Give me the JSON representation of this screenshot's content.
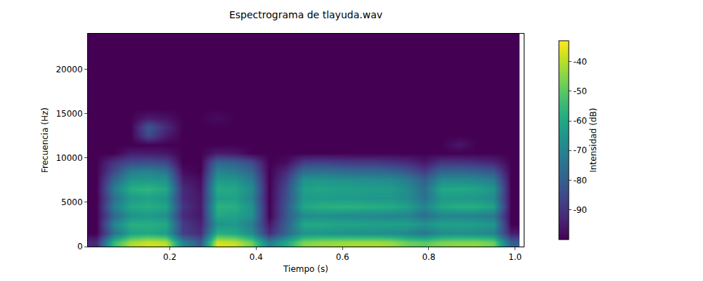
{
  "chart_data": {
    "type": "heatmap",
    "title": "Espectrograma de tlayuda.wav",
    "x_label": "Tiempo (s)",
    "y_label": "Frecuencia (Hz)",
    "colorbar_label": "Intensidad (dB)",
    "color": "Viridis",
    "grid": false,
    "x": [
      0.03,
      0.07,
      0.11,
      0.15,
      0.19,
      0.23,
      0.27,
      0.31,
      0.35,
      0.39,
      0.43,
      0.47,
      0.51,
      0.55,
      0.59,
      0.63,
      0.67,
      0.71,
      0.75,
      0.79,
      0.83,
      0.87,
      0.91,
      0.95,
      0.99
    ],
    "y": [
      500,
      1500,
      2500,
      3500,
      4500,
      5500,
      6500,
      7500,
      8500,
      9500,
      10500,
      11500,
      12500,
      13500,
      14500,
      15500,
      16500,
      17500,
      18500,
      19500,
      20500,
      21500,
      22500,
      23500
    ],
    "cells": [
      [
        -92,
        -55,
        -42,
        -38,
        -40,
        -70,
        -82,
        -37,
        -39,
        -48,
        -72,
        -60,
        -46,
        -44,
        -43,
        -42,
        -42,
        -43,
        -48,
        -50,
        -46,
        -45,
        -45,
        -48,
        -80
      ],
      [
        -100,
        -75,
        -62,
        -60,
        -63,
        -88,
        -92,
        -58,
        -60,
        -68,
        -92,
        -78,
        -66,
        -65,
        -66,
        -67,
        -67,
        -68,
        -70,
        -74,
        -68,
        -67,
        -68,
        -70,
        -95
      ],
      [
        -100,
        -70,
        -58,
        -58,
        -60,
        -88,
        -94,
        -66,
        -64,
        -72,
        -96,
        -80,
        -60,
        -60,
        -61,
        -61,
        -62,
        -62,
        -62,
        -66,
        -62,
        -62,
        -63,
        -65,
        -100
      ],
      [
        -100,
        -78,
        -66,
        -64,
        -67,
        -92,
        -96,
        -60,
        -62,
        -66,
        -100,
        -82,
        -68,
        -67,
        -68,
        -69,
        -69,
        -70,
        -70,
        -76,
        -70,
        -70,
        -71,
        -73,
        -100
      ],
      [
        -100,
        -72,
        -60,
        -58,
        -61,
        -90,
        -96,
        -57,
        -58,
        -66,
        -100,
        -82,
        -60,
        -58,
        -57,
        -57,
        -58,
        -59,
        -62,
        -70,
        -60,
        -58,
        -58,
        -62,
        -100
      ],
      [
        -100,
        -76,
        -64,
        -62,
        -65,
        -92,
        -96,
        -62,
        -62,
        -70,
        -100,
        -84,
        -64,
        -63,
        -64,
        -64,
        -65,
        -65,
        -68,
        -75,
        -64,
        -64,
        -65,
        -68,
        -100
      ],
      [
        -100,
        -72,
        -58,
        -56,
        -60,
        -92,
        -97,
        -59,
        -60,
        -68,
        -100,
        -85,
        -62,
        -61,
        -62,
        -62,
        -63,
        -63,
        -68,
        -76,
        -60,
        -60,
        -61,
        -65,
        -100
      ],
      [
        -100,
        -78,
        -65,
        -64,
        -66,
        -95,
        -98,
        -64,
        -65,
        -72,
        -100,
        -88,
        -66,
        -65,
        -66,
        -67,
        -67,
        -68,
        -72,
        -80,
        -68,
        -68,
        -69,
        -72,
        -100
      ],
      [
        -100,
        -85,
        -72,
        -70,
        -74,
        -98,
        -100,
        -70,
        -72,
        -78,
        -100,
        -92,
        -76,
        -75,
        -76,
        -77,
        -77,
        -78,
        -82,
        -88,
        -78,
        -78,
        -79,
        -82,
        -100
      ],
      [
        -100,
        -90,
        -85,
        -84,
        -86,
        -100,
        -100,
        -78,
        -80,
        -85,
        -100,
        -98,
        -88,
        -87,
        -88,
        -89,
        -89,
        -90,
        -92,
        -96,
        -90,
        -90,
        -91,
        -93,
        -100
      ],
      [
        -100,
        -100,
        -95,
        -95,
        -96,
        -100,
        -100,
        -95,
        -96,
        -100,
        -100,
        -100,
        -100,
        -100,
        -100,
        -100,
        -100,
        -100,
        -100,
        -100,
        -100,
        -100,
        -100,
        -100,
        -100
      ],
      [
        -100,
        -100,
        -100,
        -100,
        -100,
        -100,
        -100,
        -100,
        -100,
        -100,
        -100,
        -100,
        -100,
        -100,
        -100,
        -100,
        -100,
        -100,
        -100,
        -100,
        -100,
        -96,
        -100,
        -100,
        -100
      ],
      [
        -100,
        -100,
        -100,
        -85,
        -95,
        -100,
        -100,
        -100,
        -100,
        -100,
        -100,
        -100,
        -100,
        -100,
        -100,
        -100,
        -100,
        -100,
        -100,
        -100,
        -100,
        -100,
        -100,
        -100,
        -100
      ],
      [
        -100,
        -100,
        -100,
        -82,
        -92,
        -100,
        -100,
        -100,
        -100,
        -100,
        -100,
        -100,
        -100,
        -100,
        -100,
        -100,
        -100,
        -100,
        -100,
        -100,
        -100,
        -100,
        -100,
        -100,
        -100
      ],
      [
        -100,
        -100,
        -100,
        -95,
        -97,
        -100,
        -100,
        -98,
        -100,
        -100,
        -100,
        -100,
        -100,
        -100,
        -100,
        -100,
        -100,
        -100,
        -100,
        -100,
        -100,
        -100,
        -100,
        -100,
        -100
      ],
      [
        -100,
        -100,
        -100,
        -100,
        -100,
        -100,
        -100,
        -100,
        -100,
        -100,
        -100,
        -100,
        -100,
        -100,
        -100,
        -100,
        -100,
        -100,
        -100,
        -100,
        -100,
        -100,
        -100,
        -100,
        -100
      ],
      [
        -100,
        -100,
        -100,
        -100,
        -100,
        -100,
        -100,
        -100,
        -100,
        -100,
        -100,
        -100,
        -100,
        -100,
        -100,
        -100,
        -100,
        -100,
        -100,
        -100,
        -100,
        -100,
        -100,
        -100,
        -100
      ],
      [
        -100,
        -100,
        -100,
        -100,
        -100,
        -100,
        -100,
        -100,
        -100,
        -100,
        -100,
        -100,
        -100,
        -100,
        -100,
        -100,
        -100,
        -100,
        -100,
        -100,
        -100,
        -100,
        -100,
        -100,
        -100
      ],
      [
        -100,
        -100,
        -100,
        -100,
        -100,
        -100,
        -100,
        -100,
        -100,
        -100,
        -100,
        -100,
        -100,
        -100,
        -100,
        -100,
        -100,
        -100,
        -100,
        -100,
        -100,
        -100,
        -100,
        -100,
        -100
      ],
      [
        -100,
        -100,
        -100,
        -100,
        -100,
        -100,
        -100,
        -100,
        -100,
        -100,
        -100,
        -100,
        -100,
        -100,
        -100,
        -100,
        -100,
        -100,
        -100,
        -100,
        -100,
        -100,
        -100,
        -100,
        -100
      ],
      [
        -100,
        -100,
        -100,
        -100,
        -100,
        -100,
        -100,
        -100,
        -100,
        -100,
        -100,
        -100,
        -100,
        -100,
        -100,
        -100,
        -100,
        -100,
        -100,
        -100,
        -100,
        -100,
        -100,
        -100,
        -100
      ],
      [
        -100,
        -100,
        -100,
        -100,
        -100,
        -100,
        -100,
        -100,
        -100,
        -100,
        -100,
        -100,
        -100,
        -100,
        -100,
        -100,
        -100,
        -100,
        -100,
        -100,
        -100,
        -100,
        -100,
        -100,
        -100
      ],
      [
        -100,
        -100,
        -100,
        -100,
        -100,
        -100,
        -100,
        -100,
        -100,
        -100,
        -100,
        -100,
        -100,
        -100,
        -100,
        -100,
        -100,
        -100,
        -100,
        -100,
        -100,
        -100,
        -100,
        -100,
        -100
      ],
      [
        -100,
        -100,
        -100,
        -100,
        -100,
        -100,
        -100,
        -100,
        -100,
        -100,
        -100,
        -100,
        -100,
        -100,
        -100,
        -100,
        -100,
        -100,
        -100,
        -100,
        -100,
        -100,
        -100,
        -100,
        -100
      ]
    ],
    "xlim": [
      0.01,
      1.02
    ],
    "xticks": [
      0.2,
      0.4,
      0.6,
      0.8,
      {
        "value": 1,
        "label": "1.0"
      }
    ],
    "ylim": [
      0,
      24000
    ],
    "yticks": [
      0,
      5000,
      10000,
      15000,
      20000
    ],
    "color_range": [
      -100,
      -33
    ],
    "color_ticks": [
      -90,
      -80,
      -70,
      -60,
      -50,
      -40
    ]
  }
}
